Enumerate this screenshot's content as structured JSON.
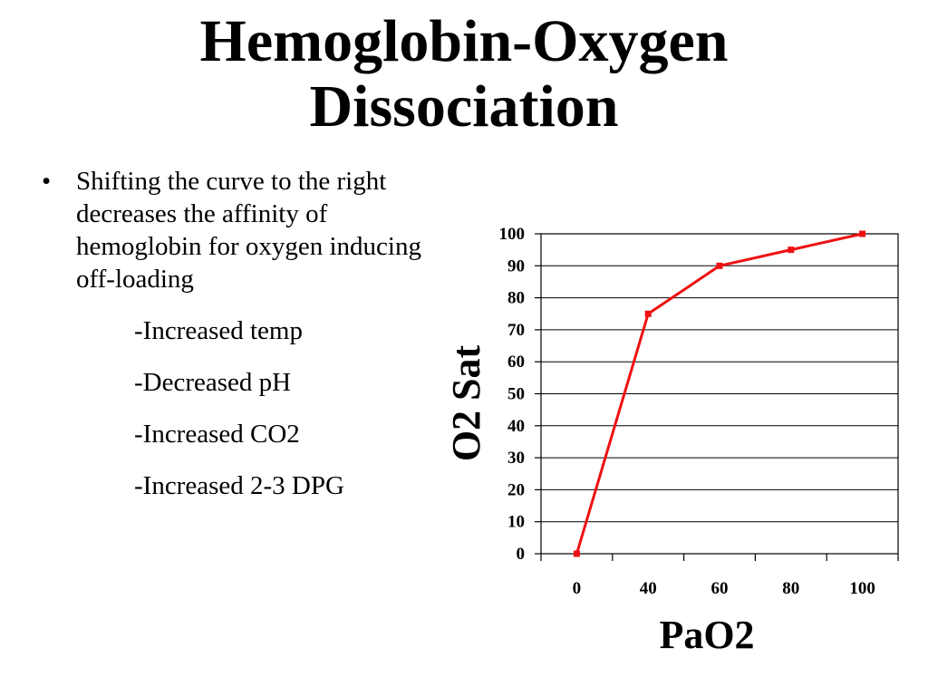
{
  "title": {
    "line1": "Hemoglobin-Oxygen",
    "line2": "Dissociation"
  },
  "bullets": {
    "main": "Shifting the curve to the right decreases the affinity of hemoglobin for oxygen inducing off-loading",
    "sub": [
      "-Increased temp",
      "-Decreased pH",
      "-Increased CO2",
      "-Increased 2-3 DPG"
    ]
  },
  "chart_data": {
    "type": "line",
    "xlabel": "PaO2",
    "ylabel": "O2 Sat",
    "categories": [
      "0",
      "40",
      "60",
      "80",
      "100"
    ],
    "series": [
      {
        "values": [
          0,
          75,
          90,
          95,
          100
        ]
      }
    ],
    "ylim": [
      0,
      100
    ],
    "yticks": [
      0,
      10,
      20,
      30,
      40,
      50,
      60,
      70,
      80,
      90,
      100
    ],
    "grid": true,
    "colors": {
      "line": "#ee1111",
      "grid": "#000000"
    }
  }
}
